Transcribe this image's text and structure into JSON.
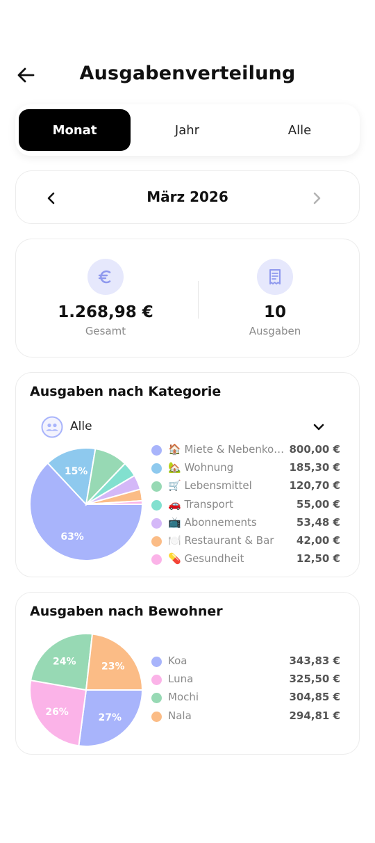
{
  "header": {
    "title": "Ausgabenverteilung"
  },
  "segments": [
    {
      "label": "Monat",
      "active": true
    },
    {
      "label": "Jahr",
      "active": false
    },
    {
      "label": "Alle",
      "active": false
    }
  ],
  "period": {
    "label": "März 2026"
  },
  "summary": {
    "total_value": "1.268,98 €",
    "total_label": "Gesamt",
    "count_value": "10",
    "count_label": "Ausgaben",
    "total_icon": "euro-icon",
    "count_icon": "receipt-icon"
  },
  "category_section": {
    "title": "Ausgaben nach Kategorie",
    "filter_label": "Alle",
    "filter_icon": "group-icon"
  },
  "resident_section": {
    "title": "Ausgaben nach Bewohner"
  },
  "chart_data": [
    {
      "type": "pie",
      "labels": [
        "🏠 Miete & Nebenkosten",
        "🏡 Wohnung",
        "🛒 Lebensmittel",
        "🚗 Transport",
        "📺 Abonnements",
        "🍽️ Restaurant & Bar",
        "💊 Gesundheit"
      ],
      "display_labels": [
        "🏠 Miete & Nebenkos...",
        "🏡 Wohnung",
        "🛒 Lebensmittel",
        "🚗 Transport",
        "📺 Abonnements",
        "🍽️ Restaurant & Bar",
        "💊 Gesundheit"
      ],
      "values": [
        800.0,
        185.3,
        120.7,
        55.0,
        53.48,
        42.0,
        12.5
      ],
      "value_labels": [
        "800,00 €",
        "185,30 €",
        "120,70 €",
        "55,00 €",
        "53,48 €",
        "42,00 €",
        "12,50 €"
      ],
      "slice_labels": [
        "63%",
        "15%",
        "",
        "",
        "",
        "",
        ""
      ],
      "colors": [
        "#a8b4fb",
        "#8ec9ee",
        "#97d9b4",
        "#82e0cf",
        "#d4b8f8",
        "#fbbc86",
        "#fbb3e8"
      ]
    },
    {
      "type": "pie",
      "labels": [
        "Koa",
        "Luna",
        "Mochi",
        "Nala"
      ],
      "values": [
        343.83,
        325.5,
        304.85,
        294.81
      ],
      "value_labels": [
        "343,83 €",
        "325,50 €",
        "304,85 €",
        "294,81 €"
      ],
      "slice_labels": [
        "27%",
        "26%",
        "24%",
        "23%"
      ],
      "colors": [
        "#a8b4fb",
        "#fbb3e8",
        "#97d9b4",
        "#fbbc86"
      ]
    }
  ]
}
